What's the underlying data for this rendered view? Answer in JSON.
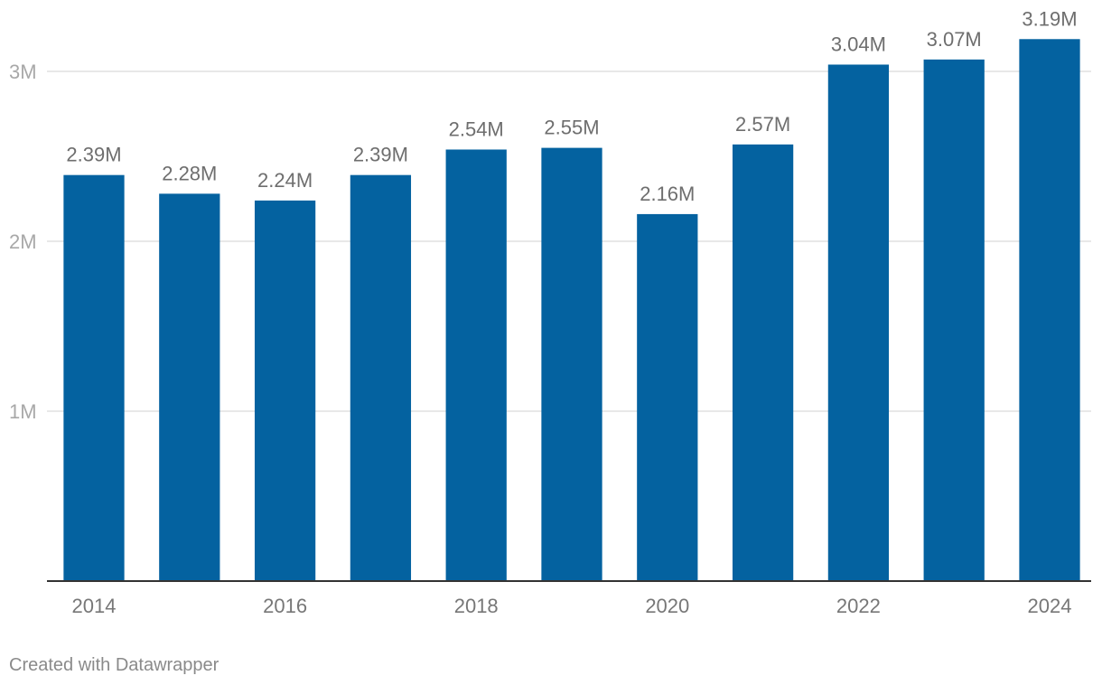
{
  "chart_data": {
    "type": "bar",
    "categories": [
      "2014",
      "2015",
      "2016",
      "2017",
      "2018",
      "2019",
      "2020",
      "2021",
      "2022",
      "2023",
      "2024"
    ],
    "values": [
      2.39,
      2.28,
      2.24,
      2.39,
      2.54,
      2.55,
      2.16,
      2.57,
      3.04,
      3.07,
      3.19
    ],
    "data_labels": [
      "2.39M",
      "2.28M",
      "2.24M",
      "2.39M",
      "2.54M",
      "2.55M",
      "2.16M",
      "2.57M",
      "3.04M",
      "3.07M",
      "3.19M"
    ],
    "x_tick_labels": [
      "2014",
      "",
      "2016",
      "",
      "2018",
      "",
      "2020",
      "",
      "2022",
      "",
      "2024"
    ],
    "y_ticks": [
      1,
      2,
      3
    ],
    "y_tick_labels": [
      "1M",
      "2M",
      "3M"
    ],
    "ylim": [
      0,
      3.35
    ],
    "title": "",
    "xlabel": "",
    "ylabel": "",
    "grid": true,
    "bar_color": "#0462a0",
    "grid_color": "#e0e0e0",
    "axis_color": "#333333"
  },
  "footer": {
    "credit": "Created with Datawrapper"
  }
}
